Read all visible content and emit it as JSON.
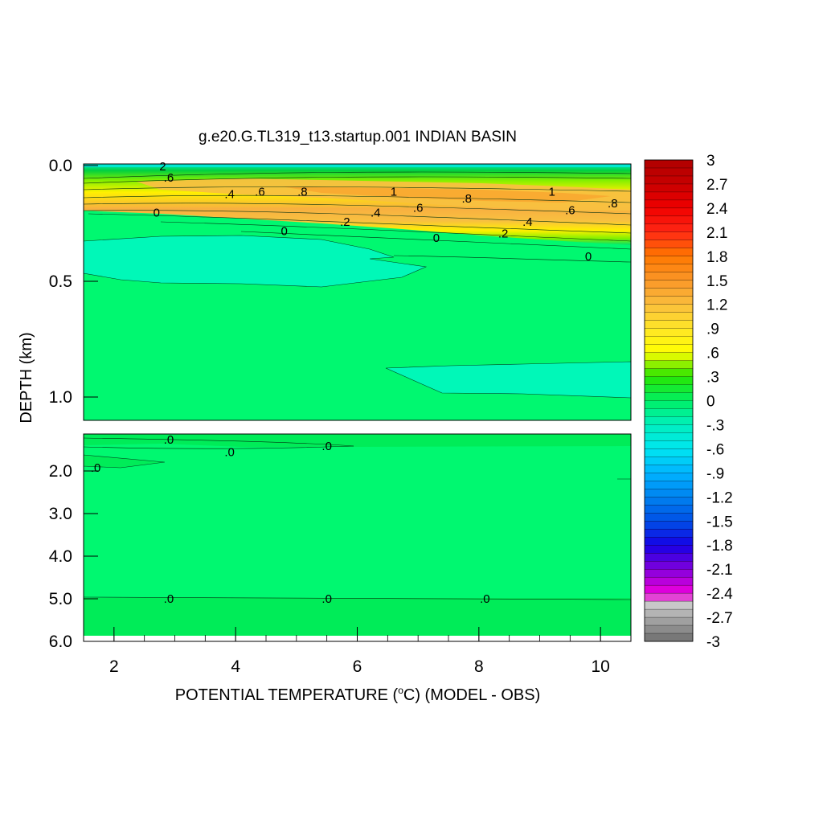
{
  "chart_data": {
    "type": "heatmap",
    "title": "g.e20.G.TL319_t13.startup.001 INDIAN BASIN",
    "xlabel_prefix": "POTENTIAL TEMPERATURE (",
    "xlabel_sup": "o",
    "xlabel_suffix": "C) (MODEL - OBS)",
    "ylabel": "DEPTH (km)",
    "x_range": [
      1.5,
      10.5
    ],
    "x_ticks": [
      "2",
      "4",
      "6",
      "8",
      "10"
    ],
    "y_ticks_upper": [
      "0.0",
      "0.5",
      "1.0"
    ],
    "y_ticks_lower": [
      "2.0",
      "3.0",
      "4.0",
      "5.0",
      "6.0"
    ],
    "colorbar": {
      "min": -3,
      "max": 3,
      "labels": [
        "3",
        "2.7",
        "2.4",
        "2.1",
        "1.8",
        "1.5",
        "1.2",
        ".9",
        ".6",
        ".3",
        "0",
        "-.3",
        "-.6",
        "-.9",
        "-1.2",
        "-1.5",
        "-1.8",
        "-2.1",
        "-2.4",
        "-2.7",
        "-3"
      ]
    },
    "contour_labels_upper": [
      {
        "text": ".6",
        "x": 4.4,
        "y": 0.13
      },
      {
        "text": ".8",
        "x": 5.1,
        "y": 0.13
      },
      {
        "text": "1",
        "x": 6.6,
        "y": 0.13
      },
      {
        "text": ".8",
        "x": 7.8,
        "y": 0.16
      },
      {
        "text": "1",
        "x": 9.2,
        "y": 0.13
      },
      {
        "text": ".8",
        "x": 10.2,
        "y": 0.18
      },
      {
        "text": ".4",
        "x": 3.9,
        "y": 0.14
      },
      {
        "text": "0",
        "x": 2.7,
        "y": 0.22
      },
      {
        "text": ".2",
        "x": 5.8,
        "y": 0.26
      },
      {
        "text": ".4",
        "x": 6.3,
        "y": 0.22
      },
      {
        "text": ".6",
        "x": 7.0,
        "y": 0.2
      },
      {
        "text": ".6",
        "x": 9.5,
        "y": 0.21
      },
      {
        "text": ".4",
        "x": 8.8,
        "y": 0.26
      },
      {
        "text": ".2",
        "x": 8.4,
        "y": 0.31
      },
      {
        "text": "0",
        "x": 4.8,
        "y": 0.3
      },
      {
        "text": "0",
        "x": 7.3,
        "y": 0.33
      },
      {
        "text": "0",
        "x": 9.8,
        "y": 0.41
      },
      {
        "text": ".6",
        "x": 2.9,
        "y": 0.07
      },
      {
        "text": "2",
        "x": 2.8,
        "y": 0.02
      }
    ],
    "contour_labels_lower": [
      {
        "text": ".0",
        "x": 2.9,
        "y": 1.5
      },
      {
        "text": ".0",
        "x": 3.9,
        "y": 1.7
      },
      {
        "text": ".0",
        "x": 5.5,
        "y": 1.6
      },
      {
        "text": ".0",
        "x": 1.7,
        "y": 1.95
      },
      {
        "text": ".0",
        "x": 2.9,
        "y": 5.0
      },
      {
        "text": ".0",
        "x": 5.5,
        "y": 5.0
      },
      {
        "text": ".0",
        "x": 8.1,
        "y": 5.0
      }
    ]
  }
}
